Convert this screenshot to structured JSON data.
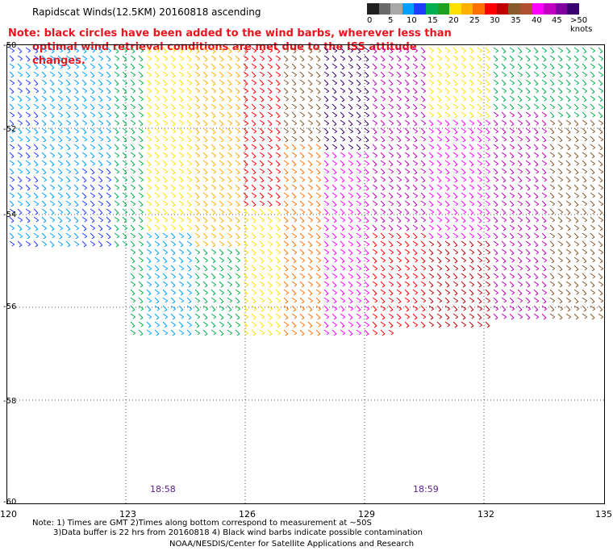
{
  "header": {
    "title": "Rapidscat Winds(12.5KM) 20160818 ascending",
    "note_line1": "Note: black circles have been added to the wind barbs, wherever less than",
    "note_line2": "optimal wind retrieval conditions are met due to the ISS attitude changes."
  },
  "legend": {
    "colors": [
      "#202020",
      "#6a6a6a",
      "#a8a8a8",
      "#00a0ff",
      "#1f3cff",
      "#00b050",
      "#20a020",
      "#ffe000",
      "#ffb000",
      "#ff7000",
      "#ff0000",
      "#c00000",
      "#8a5a2a",
      "#b05030",
      "#ff00ff",
      "#c000c0",
      "#8000a0",
      "#3a0070"
    ],
    "labels": [
      "0",
      "5",
      "10",
      "15",
      "20",
      "25",
      "30",
      "35",
      "40",
      "45",
      ">50 knots"
    ]
  },
  "map": {
    "lat_labels": [
      "-50",
      "-52",
      "-54",
      "-56",
      "-58",
      "-60"
    ],
    "lon_labels": [
      "120",
      "123",
      "126",
      "129",
      "132",
      "135"
    ],
    "time_labels": [
      "18:58",
      "18:59"
    ]
  },
  "footer": {
    "note1": "Note: 1) Times are GMT 2)Times along bottom correspond to measurement at ~50S",
    "note2": "3)Data buffer is 22 hrs from 20160818 4) Black wind barbs indicate possible contamination",
    "credit": "NOAA/NESDIS/Center for Satellite Applications and Research"
  }
}
